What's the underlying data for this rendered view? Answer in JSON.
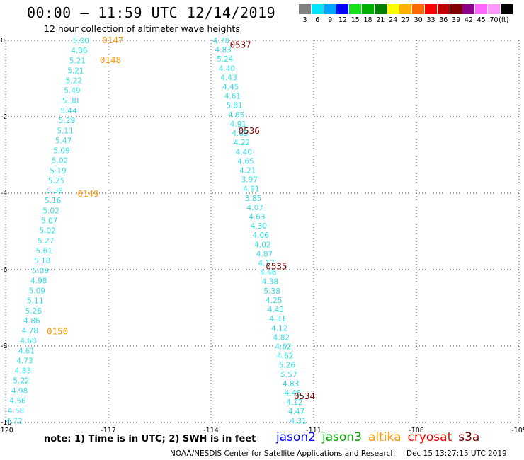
{
  "header": {
    "title": "00:00 — 11:59 UTC 12/14/2019",
    "subtitle": "12 hour collection of altimeter wave heights"
  },
  "scale": {
    "colors": [
      "#808080",
      "#00e5ff",
      "#00a5ff",
      "#0000ff",
      "#18e018",
      "#00b000",
      "#008000",
      "#ffff00",
      "#ffb000",
      "#ff6a00",
      "#ff0000",
      "#c00000",
      "#800000",
      "#8b008b",
      "#ff66ff",
      "#ff99ff",
      "#000000"
    ],
    "labels": [
      "3",
      "6",
      "9",
      "12",
      "15",
      "18",
      "21",
      "24",
      "27",
      "30",
      "33",
      "36",
      "39",
      "42",
      "45",
      "70",
      "(ft)"
    ]
  },
  "chart_data": {
    "type": "scatter",
    "xlim": [
      -120,
      -105
    ],
    "ylim": [
      -10,
      0
    ],
    "x_ticks": [
      "-120",
      "-117",
      "-114",
      "-111",
      "-108",
      "-105"
    ],
    "y_ticks": [
      "0",
      "-2",
      "-4",
      "-6",
      "-8",
      "-10"
    ],
    "grid": true,
    "series": [
      {
        "name": "altika",
        "color": "#33dde8",
        "lon0": -117.8,
        "lon1": -119.75,
        "values": [
          "5.00",
          "4.86",
          "5.21",
          "5.21",
          "5.22",
          "5.49",
          "5.38",
          "5.44",
          "5.29",
          "5.11",
          "5.47",
          "5.09",
          "5.02",
          "5.19",
          "5.25",
          "5.38",
          "5.16",
          "5.02",
          "5.07",
          "5.02",
          "5.27",
          "5.61",
          "5.18",
          "5.09",
          "4.98",
          "5.09",
          "5.11",
          "5.26",
          "4.86",
          "4.78",
          "4.68",
          "4.61",
          "4.73",
          "4.83",
          "5.22",
          "4.98",
          "4.56",
          "4.58",
          "4.72"
        ],
        "time_labels": [
          {
            "text": "0147",
            "lon": -117.18,
            "lat": 0.02
          },
          {
            "text": "0148",
            "lon": -117.25,
            "lat": -0.5
          },
          {
            "text": "0149",
            "lon": -117.9,
            "lat": -4.0
          },
          {
            "text": "0150",
            "lon": -118.8,
            "lat": -7.6
          }
        ],
        "time_color": "#ff9900"
      },
      {
        "name": "cryosat",
        "color": "#33dde8",
        "lon0": -113.7,
        "lon1": -111.45,
        "values": [
          "4.78",
          "4.83",
          "5.24",
          "4.40",
          "4.43",
          "4.45",
          "4.61",
          "5.81",
          "4.65",
          "4.91",
          "4.65",
          "4.22",
          "4.40",
          "4.65",
          "4.21",
          "3.97",
          "4.91",
          "3.85",
          "4.07",
          "4.63",
          "4.30",
          "4.06",
          "4.02",
          "4.87",
          "4.17",
          "4.46",
          "4.38",
          "5.38",
          "4.25",
          "4.43",
          "4.31",
          "4.12",
          "4.82",
          "4.62",
          "4.62",
          "5.26",
          "5.57",
          "4.83",
          "4.46",
          "4.12",
          "4.47",
          "4.31"
        ],
        "time_labels": [
          {
            "text": "0537",
            "lon": -113.45,
            "lat": -0.1
          },
          {
            "text": "0536",
            "lon": -113.2,
            "lat": -2.35
          },
          {
            "text": "0535",
            "lon": -112.4,
            "lat": -5.9
          },
          {
            "text": "0534",
            "lon": -111.58,
            "lat": -9.3
          }
        ],
        "time_color": "#800000"
      }
    ]
  },
  "legend": {
    "note": "note: 1) Time is in UTC; 2) SWH is in feet",
    "satellites": [
      {
        "name": "jason2",
        "color": "#0000ff"
      },
      {
        "name": "jason3",
        "color": "#00a000"
      },
      {
        "name": "altika",
        "color": "#ff9900"
      },
      {
        "name": "cryosat",
        "color": "#ff0000"
      },
      {
        "name": "s3a",
        "color": "#800000"
      }
    ]
  },
  "footer": {
    "credit": "NOAA/NESDIS Center for Satellite Applications and Research",
    "timestamp": "Dec 15 13:27:15 UTC 2019"
  }
}
